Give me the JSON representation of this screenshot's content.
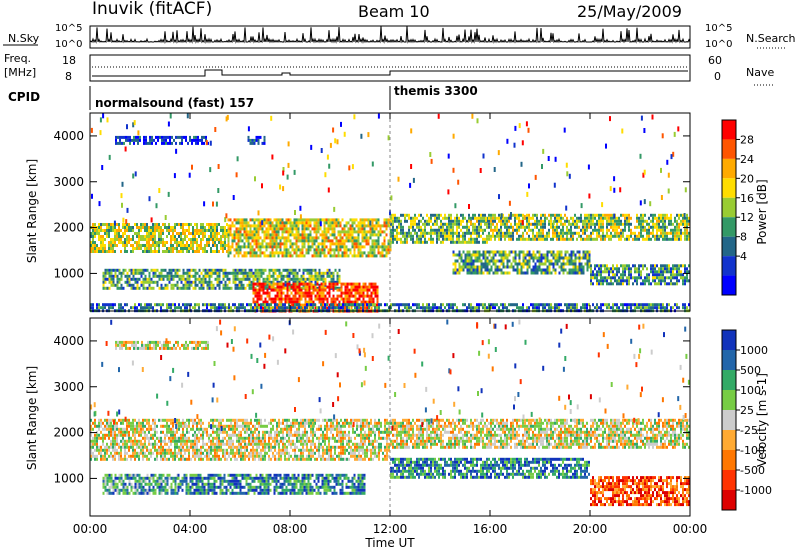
{
  "header": {
    "station": "Inuvik (fitACF)",
    "beam": "Beam 10",
    "date": "25/May/2009"
  },
  "strip": {
    "nsky_label": "N.Sky",
    "nsky_ticks": [
      "10^5",
      "10^0"
    ],
    "nsearch_label": "N.Search",
    "freq_label_1": "Freq.",
    "freq_label_2": "[MHz]",
    "freq_ticks": [
      "18",
      "8"
    ],
    "nave_ticks": [
      "60",
      "0"
    ],
    "nave_label": "Nave",
    "cpid_label": "CPID",
    "cpid_segments": [
      {
        "name": "normalsound (fast) 157",
        "start_hour": 0,
        "end_hour": 12
      },
      {
        "name": "themis 3300",
        "start_hour": 12,
        "end_hour": 24
      }
    ]
  },
  "power_scale": {
    "label": "Power [dB]",
    "ticks": [
      "28",
      "24",
      "20",
      "16",
      "12",
      "8",
      "4"
    ],
    "colors": [
      "#ff0000",
      "#ff5500",
      "#ffaa00",
      "#ffdd00",
      "#99cc33",
      "#339966",
      "#226688",
      "#1133cc",
      "#0000ff"
    ]
  },
  "velocity_scale": {
    "label": "Velocity [m s-1]",
    "ticks": [
      "1000",
      "500",
      "100",
      "25",
      "-25",
      "-100",
      "-500",
      "-1000"
    ],
    "colors": [
      "#1133bb",
      "#2266aa",
      "#33aa66",
      "#77cc44",
      "#cccccc",
      "#ffaa33",
      "#ff7700",
      "#ff3300",
      "#dd0000"
    ]
  },
  "axes": {
    "ylabel": "Slant Range [km]",
    "yticks": [
      "4000",
      "3000",
      "2000",
      "1000"
    ],
    "xlabel": "Time UT",
    "xticks": [
      "00:00",
      "04:00",
      "08:00",
      "12:00",
      "16:00",
      "20:00",
      "00:00"
    ]
  },
  "chart_data": [
    {
      "type": "heatmap",
      "title": "",
      "ylabel": "Slant Range [km]",
      "xlabel": "",
      "xlim": [
        0,
        24
      ],
      "ylim": [
        180,
        4500
      ],
      "colorbar": "Power [dB]",
      "bands": [
        {
          "t0": 1.0,
          "t1": 4.7,
          "r0": 3850,
          "r1": 4000,
          "level": 0.15
        },
        {
          "t0": 6.3,
          "t1": 7.0,
          "r0": 3850,
          "r1": 4000,
          "level": 0.2
        },
        {
          "t0": 0.0,
          "t1": 5.5,
          "r0": 1450,
          "r1": 2100,
          "level": 0.55
        },
        {
          "t0": 5.5,
          "t1": 12.0,
          "r0": 1400,
          "r1": 2200,
          "level": 0.6
        },
        {
          "t0": 12.0,
          "t1": 16.0,
          "r0": 1700,
          "r1": 2300,
          "level": 0.45
        },
        {
          "t0": 16.0,
          "t1": 24.0,
          "r0": 1750,
          "r1": 2300,
          "level": 0.5
        },
        {
          "t0": 0.5,
          "t1": 10.0,
          "r0": 700,
          "r1": 1100,
          "level": 0.4
        },
        {
          "t0": 14.5,
          "t1": 20.0,
          "r0": 1000,
          "r1": 1500,
          "level": 0.4
        },
        {
          "t0": 20.0,
          "t1": 24.0,
          "r0": 800,
          "r1": 1200,
          "level": 0.35
        },
        {
          "t0": 6.5,
          "t1": 11.5,
          "r0": 180,
          "r1": 800,
          "level": 0.9
        },
        {
          "t0": 0.0,
          "t1": 24.0,
          "r0": 180,
          "r1": 350,
          "level": 0.3
        }
      ]
    },
    {
      "type": "heatmap",
      "title": "",
      "ylabel": "Slant Range [km]",
      "xlabel": "Time UT",
      "xlim": [
        0,
        24
      ],
      "ylim": [
        180,
        4500
      ],
      "colorbar": "Velocity [m s-1]",
      "bands": [
        {
          "t0": 1.0,
          "t1": 4.7,
          "r0": 3850,
          "r1": 4000,
          "level": 0.5
        },
        {
          "t0": 0.0,
          "t1": 12.0,
          "r0": 1400,
          "r1": 2300,
          "level": 0.5
        },
        {
          "t0": 12.0,
          "t1": 24.0,
          "r0": 1650,
          "r1": 2300,
          "level": 0.5
        },
        {
          "t0": 0.5,
          "t1": 3.5,
          "r0": 700,
          "r1": 1100,
          "level": 0.7
        },
        {
          "t0": 3.5,
          "t1": 11.0,
          "r0": 700,
          "r1": 1100,
          "level": 0.8
        },
        {
          "t0": 12.0,
          "t1": 20.0,
          "r0": 1000,
          "r1": 1450,
          "level": 0.8
        },
        {
          "t0": 20.0,
          "t1": 24.0,
          "r0": 400,
          "r1": 1050,
          "level": 0.2
        }
      ]
    }
  ]
}
